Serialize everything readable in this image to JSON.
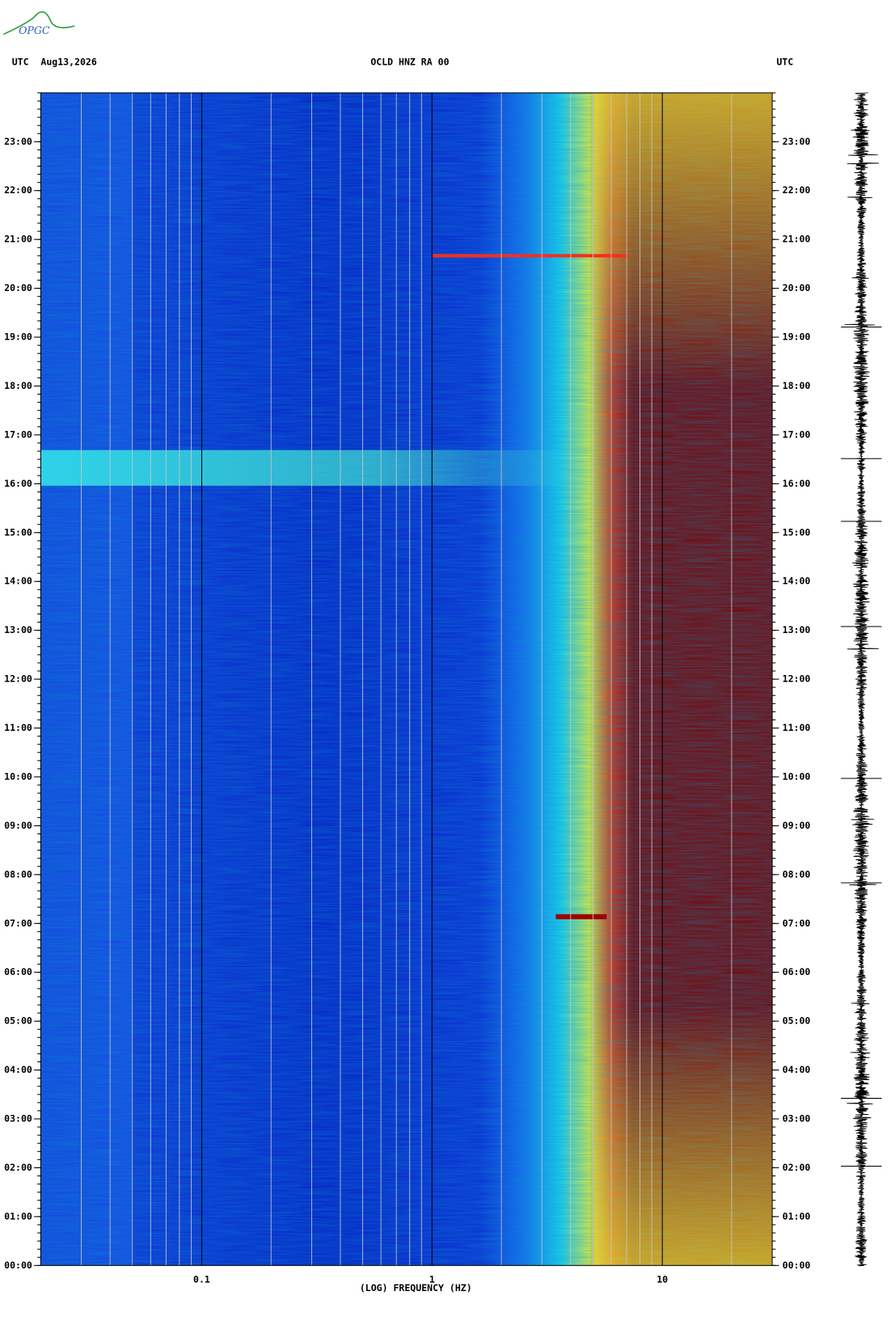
{
  "chart_data": {
    "type": "spectrogram",
    "logo": "OPGC",
    "time_zone": "UTC",
    "date": "Aug13,2026",
    "title": "OCLD HNZ RA 00",
    "xlabel": "(LOG) FREQUENCY (HZ)",
    "xscale": "log",
    "xlim": [
      0.02,
      30
    ],
    "xticks": [
      0.1,
      1,
      10
    ],
    "ylim": [
      0,
      24
    ],
    "yticks": [
      {
        "value": 0,
        "label": "00:00"
      },
      {
        "value": 1,
        "label": "01:00"
      },
      {
        "value": 2,
        "label": "02:00"
      },
      {
        "value": 3,
        "label": "03:00"
      },
      {
        "value": 4,
        "label": "04:00"
      },
      {
        "value": 5,
        "label": "05:00"
      },
      {
        "value": 6,
        "label": "06:00"
      },
      {
        "value": 7,
        "label": "07:00"
      },
      {
        "value": 8,
        "label": "08:00"
      },
      {
        "value": 9,
        "label": "09:00"
      },
      {
        "value": 10,
        "label": "10:00"
      },
      {
        "value": 11,
        "label": "11:00"
      },
      {
        "value": 12,
        "label": "12:00"
      },
      {
        "value": 13,
        "label": "13:00"
      },
      {
        "value": 14,
        "label": "14:00"
      },
      {
        "value": 15,
        "label": "15:00"
      },
      {
        "value": 16,
        "label": "16:00"
      },
      {
        "value": 17,
        "label": "17:00"
      },
      {
        "value": 18,
        "label": "18:00"
      },
      {
        "value": 19,
        "label": "19:00"
      },
      {
        "value": 20,
        "label": "20:00"
      },
      {
        "value": 21,
        "label": "21:00"
      },
      {
        "value": 22,
        "label": "22:00"
      },
      {
        "value": 23,
        "label": "23:00"
      }
    ],
    "grid": true
  }
}
